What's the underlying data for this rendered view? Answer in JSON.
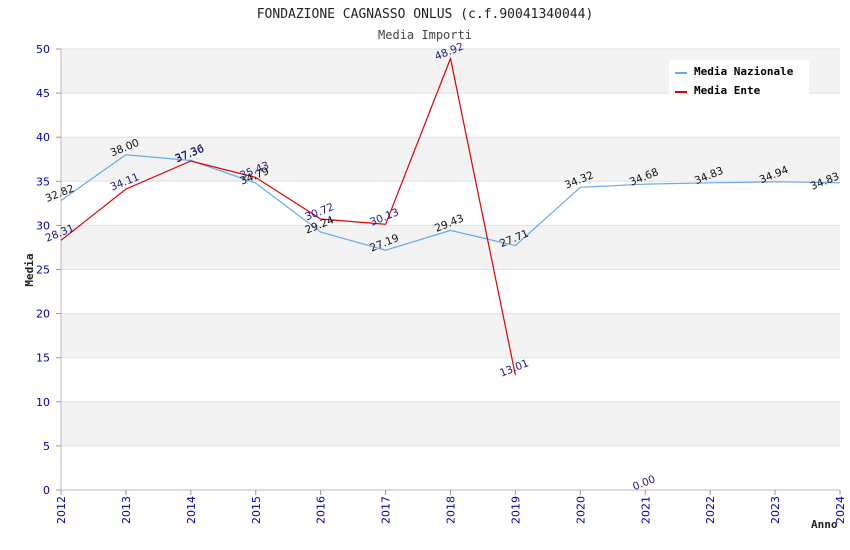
{
  "chart_data": {
    "type": "line",
    "title": "FONDAZIONE CAGNASSO ONLUS (c.f.90041340044)",
    "subtitle": "Media Importi",
    "xlabel": "Anno",
    "ylabel": "Media",
    "ylim": [
      0,
      50
    ],
    "yticks": [
      "0",
      "5",
      "10",
      "15",
      "20",
      "25",
      "30",
      "35",
      "40",
      "45",
      "50"
    ],
    "categories": [
      "2012",
      "2013",
      "2014",
      "2015",
      "2016",
      "2017",
      "2018",
      "2019",
      "2020",
      "2021",
      "2022",
      "2023",
      "2024"
    ],
    "grid": true,
    "legend_position": "top-right",
    "series": [
      {
        "name": "Media Nazionale",
        "color": "#66aaee",
        "label_color": "#111111",
        "values": [
          32.82,
          38.0,
          37.36,
          34.79,
          29.24,
          27.19,
          29.43,
          27.71,
          34.32,
          34.68,
          34.83,
          34.94,
          34.83
        ],
        "labels": [
          "32.82",
          "38.00",
          "37.36",
          "34.79",
          "29.24",
          "27.19",
          "29.43",
          "27.71",
          "34.32",
          "34.68",
          "34.83",
          "34.94",
          "34.83"
        ]
      },
      {
        "name": "Media Ente",
        "color": "#dd0000",
        "label_color": "#1a1a8c",
        "values": [
          28.31,
          34.11,
          37.3,
          35.43,
          30.72,
          30.13,
          48.92,
          13.01,
          null,
          0.0,
          null,
          null,
          null
        ],
        "labels": [
          "28.31",
          "34.11",
          "37.30",
          "35.43",
          "30.72",
          "30.13",
          "48.92",
          "13.01",
          null,
          "0.00",
          null,
          null,
          null
        ],
        "line_through": [
          true,
          true,
          true,
          true,
          true,
          true,
          true,
          true,
          false,
          false,
          false,
          false,
          false
        ]
      }
    ]
  }
}
